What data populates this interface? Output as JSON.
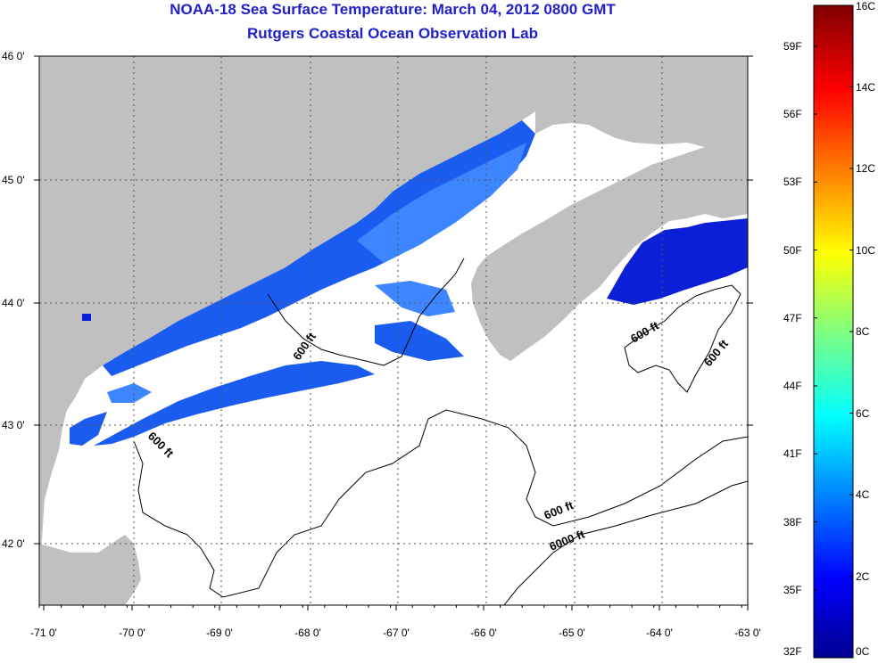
{
  "title": {
    "line1": "NOAA-18 Sea Surface Temperature:  March 04, 2012 0800 GMT",
    "line2": "Rutgers Coastal Ocean Observation Lab"
  },
  "map": {
    "lon_range": [
      -71,
      -63
    ],
    "lat_range": [
      41.5,
      46
    ],
    "lon_ticks": [
      {
        "value": -71,
        "label": "-71 0'"
      },
      {
        "value": -70,
        "label": "-70 0'"
      },
      {
        "value": -69,
        "label": "-69 0'"
      },
      {
        "value": -68,
        "label": "-68 0'"
      },
      {
        "value": -67,
        "label": "-67 0'"
      },
      {
        "value": -66,
        "label": "-66 0'"
      },
      {
        "value": -65,
        "label": "-65 0'"
      },
      {
        "value": -64,
        "label": "-64 0'"
      },
      {
        "value": -63,
        "label": "-63 0'"
      }
    ],
    "lat_ticks": [
      {
        "value": 46,
        "label": "46 0'"
      },
      {
        "value": 45,
        "label": "45 0'"
      },
      {
        "value": 44,
        "label": "44 0'"
      },
      {
        "value": 43,
        "label": "43 0'"
      },
      {
        "value": 42,
        "label": "42 0'"
      }
    ],
    "contour_labels": [
      "600 ft",
      "600 ft",
      "600 ft",
      "600 ft",
      "600 ft",
      "6000 ft"
    ],
    "land_color": "#c0c0c0",
    "no_data_color": "#ffffff",
    "sst_colors": [
      "#0a1fd6",
      "#1a5cf0",
      "#3d86ff",
      "#6aa8ff"
    ]
  },
  "colorbar": {
    "celsius": [
      "16C",
      "14C",
      "12C",
      "10C",
      "8C",
      "6C",
      "4C",
      "2C",
      "0C"
    ],
    "fahrenheit": [
      "59F",
      "56F",
      "53F",
      "50F",
      "47F",
      "44F",
      "41F",
      "38F",
      "35F",
      "32F"
    ],
    "range_c": [
      0,
      16
    ]
  }
}
